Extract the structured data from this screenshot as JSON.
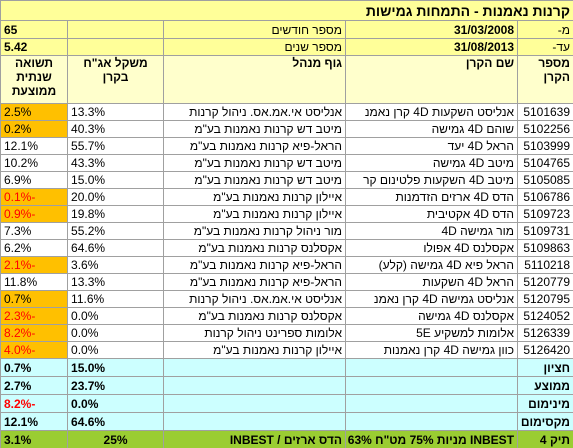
{
  "header": {
    "title": "קרנות נאמנות - התמחות גמישות",
    "from_label": "מ-",
    "from_date": "31/03/2008",
    "months_label": "מספר חודשים",
    "months": "65",
    "to_label": "עד-",
    "to_date": "31/08/2013",
    "years_label": "מספר שנים",
    "years": "5.42"
  },
  "columns": [
    "מספר הקרן",
    "שם הקרן",
    "גוף מנהל",
    "משקל אג\"ח בקרן",
    "תשואה שנתית ממוצעת"
  ],
  "rows": [
    {
      "number": "5101639",
      "name": "אנליסט השקעות 4D קרן נאמנ",
      "manager": "אנליסט אי.אמ.אס. ניהול קרנות",
      "weight": "13.3%",
      "return": "2.5%",
      "fill": "#ffc000"
    },
    {
      "number": "5102256",
      "name": "שוהם 4D גמישה",
      "manager": "מיטב דש קרנות נאמנות בע\"מ",
      "weight": "40.3%",
      "return": "0.2%",
      "fill": "#ffc000"
    },
    {
      "number": "5103999",
      "name": "הראל 4D יעד",
      "manager": "הראל-פיא קרנות נאמנות בע\"מ",
      "weight": "55.7%",
      "return": "12.1%",
      "fill": "#ffffff"
    },
    {
      "number": "5104765",
      "name": "מיטב 4D גמישה",
      "manager": "מיטב דש קרנות נאמנות בע\"מ",
      "weight": "43.3%",
      "return": "10.2%",
      "fill": "#ffffff"
    },
    {
      "number": "5105085",
      "name": "מיטב 4D השקעות פלטינום קר",
      "manager": "מיטב דש קרנות נאמנות בע\"מ",
      "weight": "15.0%",
      "return": "6.9%",
      "fill": "#ffffff"
    },
    {
      "number": "5106786",
      "name": "הדס 4D ארזים הזדמנות",
      "manager": "איילון קרנות נאמנות בע\"מ",
      "weight": "20.0%",
      "return": "-0.1%",
      "fill": "#ffc000"
    },
    {
      "number": "5109723",
      "name": "הדס 4D אקטיבית",
      "manager": "איילון קרנות נאמנות בע\"מ",
      "weight": "19.8%",
      "return": "-0.9%",
      "fill": "#ffc000"
    },
    {
      "number": "5109731",
      "name": "מור גמישה 4D",
      "manager": "מור ניהול קרנות נאמנות בע\"מ",
      "weight": "55.2%",
      "return": "7.3%",
      "fill": "#ffffff"
    },
    {
      "number": "5109863",
      "name": "אקסלנס 4D אפולו",
      "manager": "אקסלנס קרנות נאמנות בע\"מ",
      "weight": "64.6%",
      "return": "6.2%",
      "fill": "#ffffff"
    },
    {
      "number": "5110218",
      "name": "הראל פיא 4D גמישה (קלע)",
      "manager": "הראל-פיא קרנות נאמנות בע\"מ",
      "weight": "3.6%",
      "return": "-2.1%",
      "fill": "#ffc000"
    },
    {
      "number": "5120779",
      "name": "הראל 4D השקעות",
      "manager": "הראל-פיא קרנות נאמנות בע\"מ",
      "weight": "13.3%",
      "return": "11.8%",
      "fill": "#ffffff"
    },
    {
      "number": "5120795",
      "name": "אנליסט גמישה 4D קרן נאמנ",
      "manager": "אנליסט אי.אמ.אס. ניהול קרנות",
      "weight": "11.6%",
      "return": "0.7%",
      "fill": "#ffc000"
    },
    {
      "number": "5124052",
      "name": "אקסלנס 4D גמישה",
      "manager": "אקסלנס קרנות נאמנות בע\"מ",
      "weight": "0.0%",
      "return": "-2.3%",
      "fill": "#ffc000"
    },
    {
      "number": "5126339",
      "name": "אלומות למשקיע 5E",
      "manager": "אלומות ספרינט ניהול קרנות",
      "weight": "0.0%",
      "return": "-8.2%",
      "fill": "#ffc000"
    },
    {
      "number": "5126420",
      "name": "כוון גמישה 4D קרן נאמנות",
      "manager": "איילון קרנות נאמנות בע\"מ",
      "weight": "0.0%",
      "return": "-4.0%",
      "fill": "#ffc000"
    }
  ],
  "summary": [
    {
      "label": "חציון",
      "weight": "15.0%",
      "return": "0.7%"
    },
    {
      "label": "ממוצע",
      "weight": "23.7%",
      "return": "2.7%"
    },
    {
      "label": "מינימום",
      "weight": "0.0%",
      "return": "-8.2%"
    },
    {
      "label": "מקסימום",
      "weight": "64.6%",
      "return": "12.1%"
    }
  ],
  "total": {
    "label": "תיק 4",
    "name": "INBEST מניות 75% מט\"ח 63%",
    "manager": "הדס ארזים / INBEST",
    "weight": "25%",
    "return": "3.1%"
  },
  "colors": {
    "top": "#ffff99",
    "header": "#ffffcc",
    "summary": "#ccffff",
    "total": "#9acd32",
    "negative": "#ff0000"
  }
}
